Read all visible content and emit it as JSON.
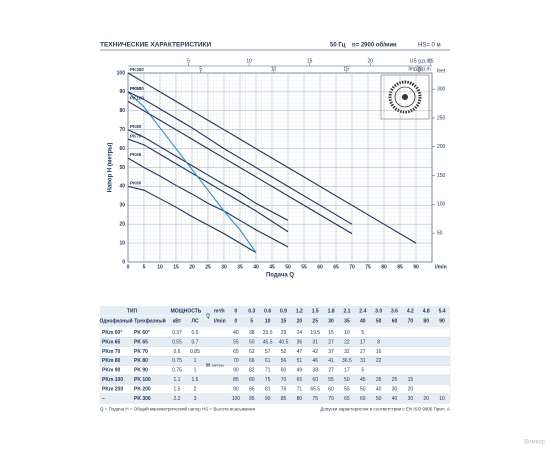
{
  "header": {
    "title": "ТЕХНИЧЕСКИЕ ХАРАКТЕРИСТИКИ",
    "freq": "50 Гц",
    "speed": "n= 2900 об/мин",
    "hs": "HS= 0 м"
  },
  "chart": {
    "y_label": "Напор H (метры)",
    "x_label": "Подача Q",
    "x_unit": "l/min",
    "feet_unit": "feet",
    "us_unit": "US g.p.m.",
    "imp_unit": "Imp g.p.m.",
    "xlim": [
      0,
      95
    ],
    "ylim": [
      0,
      100
    ],
    "xticks": [
      0,
      5,
      10,
      15,
      20,
      25,
      30,
      35,
      40,
      45,
      50,
      55,
      60,
      65,
      70,
      75,
      80,
      85,
      90
    ],
    "yticks": [
      0,
      10,
      20,
      30,
      40,
      50,
      60,
      70,
      80,
      90,
      100
    ],
    "feet_ticks": [
      50,
      100,
      150,
      200,
      250,
      300
    ],
    "us_ticks": [
      5,
      10,
      15,
      20,
      25
    ],
    "imp_ticks": [
      5,
      10,
      15,
      20
    ],
    "line_color": "#1d3557",
    "highlight_color": "#2e8fc4"
  },
  "table": {
    "type_header": "ТИП",
    "single_phase": "Однофазный",
    "three_phase": "Трехфазный",
    "power_header": "МОЩНОСТЬ",
    "kw": "кВт",
    "hp": "ЛС",
    "q": "Q",
    "m3h_unit": "m³/h",
    "lmin_unit": "l/min",
    "h": "H",
    "h_unit": "метры",
    "m3h": [
      "0",
      "0.3",
      "0.6",
      "0.9",
      "1.2",
      "1.5",
      "1.8",
      "2.1",
      "2.4",
      "3.0",
      "3.6",
      "4.2",
      "4.8",
      "5.4"
    ],
    "lmin": [
      0,
      5,
      10,
      15,
      20,
      25,
      30,
      35,
      40,
      50,
      60,
      70,
      80,
      90
    ],
    "rows": [
      {
        "single": "PKm 60°",
        "three": "PK 60°",
        "curve_label": "PK60",
        "kw": 0.37,
        "hp": 0.5,
        "values": [
          40,
          38,
          33.5,
          29,
          24,
          19.5,
          15,
          10,
          5,
          null,
          null,
          null,
          null,
          null
        ]
      },
      {
        "single": "PKm 65",
        "three": "PK 65",
        "curve_label": "PK65",
        "kw": 0.55,
        "hp": 0.7,
        "values": [
          55,
          50,
          45.5,
          40.5,
          36,
          31,
          27,
          22,
          17,
          8,
          null,
          null,
          null,
          null
        ]
      },
      {
        "single": "PKm 70",
        "three": "PK 70",
        "curve_label": "PK70",
        "kw": 0.6,
        "hp": 0.85,
        "values": [
          65,
          62,
          57,
          52,
          47,
          42,
          37,
          32,
          27,
          16,
          null,
          null,
          null,
          null
        ]
      },
      {
        "single": "PKm 80",
        "three": "PK 80",
        "curve_label": "PK80",
        "kw": 0.75,
        "hp": 1,
        "values": [
          70,
          66,
          61,
          56,
          51,
          46,
          41,
          36.5,
          31,
          22,
          null,
          null,
          null,
          null
        ]
      },
      {
        "single": "PKm 90",
        "three": "PK 90",
        "curve_label": "PK90",
        "kw": 0.75,
        "hp": 1,
        "values": [
          90,
          82,
          71,
          60,
          49,
          38,
          27,
          17,
          5,
          null,
          null,
          null,
          null,
          null
        ]
      },
      {
        "single": "PKm 100",
        "three": "PK 100",
        "curve_label": "PK100",
        "kw": 1.1,
        "hp": 1.5,
        "values": [
          85,
          80,
          75,
          70,
          65,
          60,
          55,
          50,
          45,
          35,
          25,
          15,
          null,
          null
        ]
      },
      {
        "single": "PKm 200",
        "three": "PK 200",
        "curve_label": "PK200",
        "kw": 1.5,
        "hp": 2,
        "values": [
          90,
          86,
          81,
          76,
          71,
          65.5,
          60,
          55,
          50,
          40,
          30,
          20,
          null,
          null
        ]
      },
      {
        "single": "–",
        "three": "PK 300",
        "curve_label": "PK300",
        "kw": 2.2,
        "hp": 3,
        "values": [
          100,
          95,
          90,
          85,
          80,
          75,
          70,
          65,
          60,
          50,
          40,
          30,
          20,
          10
        ]
      }
    ]
  },
  "footer": {
    "legend": "Q = Подача   H = Общий манометрический напор   HS = Высота всасывания",
    "note": "Допуски характеристик в соответствии с EN ISO 9906 Прил. А",
    "watermark": "Вимкор"
  }
}
